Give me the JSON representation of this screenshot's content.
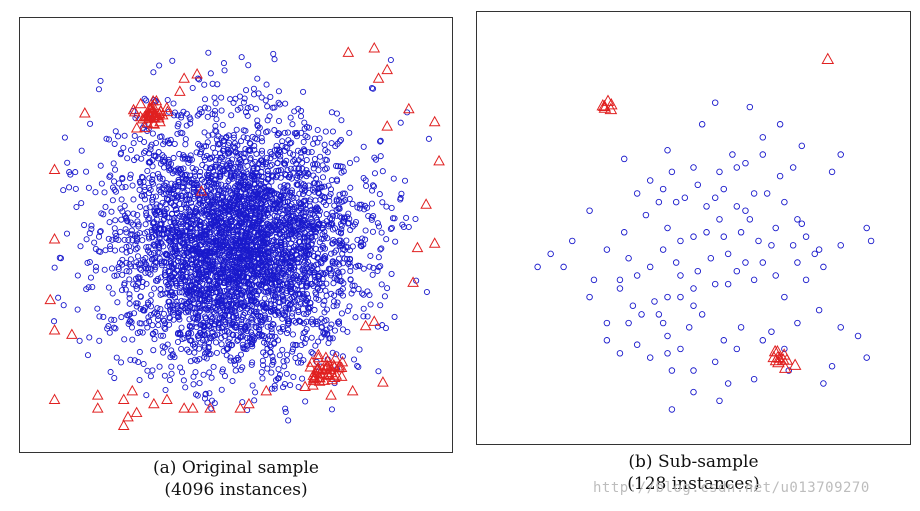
{
  "colors": {
    "inlier": "#1a1acc",
    "anomaly": "#e02020"
  },
  "watermark": "http://blog.csdn.net/u013709270",
  "chart_data": [
    {
      "type": "scatter",
      "caption_line1": "(a) Original sample",
      "caption_line2": "(4096 instances)",
      "xlim": [
        0,
        1
      ],
      "ylim": [
        0,
        1
      ],
      "series": [
        {
          "kind": "circle-dense",
          "count": 4096,
          "center": [
            0.5,
            0.52
          ],
          "spread": [
            0.14,
            0.14
          ]
        },
        {
          "kind": "triangle-cluster",
          "clusters": [
            {
              "center": [
                0.3,
                0.22
              ],
              "spread": [
                0.02,
                0.012
              ],
              "count": 45
            },
            {
              "center": [
                0.7,
                0.81
              ],
              "spread": [
                0.022,
                0.014
              ],
              "count": 45
            }
          ]
        },
        {
          "kind": "triangle-scatter",
          "points": [
            [
              0.76,
              0.08
            ],
            [
              0.82,
              0.07
            ],
            [
              0.85,
              0.12
            ],
            [
              0.83,
              0.14
            ],
            [
              0.38,
              0.14
            ],
            [
              0.41,
              0.13
            ],
            [
              0.37,
              0.17
            ],
            [
              0.9,
              0.21
            ],
            [
              0.96,
              0.24
            ],
            [
              0.85,
              0.25
            ],
            [
              0.15,
              0.22
            ],
            [
              0.42,
              0.4
            ],
            [
              0.97,
              0.33
            ],
            [
              0.08,
              0.35
            ],
            [
              0.94,
              0.43
            ],
            [
              0.08,
              0.51
            ],
            [
              0.92,
              0.53
            ],
            [
              0.96,
              0.52
            ],
            [
              0.91,
              0.61
            ],
            [
              0.07,
              0.65
            ],
            [
              0.08,
              0.72
            ],
            [
              0.12,
              0.73
            ],
            [
              0.82,
              0.7
            ],
            [
              0.8,
              0.71
            ],
            [
              0.08,
              0.88
            ],
            [
              0.18,
              0.87
            ],
            [
              0.18,
              0.9
            ],
            [
              0.24,
              0.88
            ],
            [
              0.26,
              0.86
            ],
            [
              0.31,
              0.89
            ],
            [
              0.34,
              0.88
            ],
            [
              0.38,
              0.9
            ],
            [
              0.4,
              0.9
            ],
            [
              0.25,
              0.92
            ],
            [
              0.27,
              0.91
            ],
            [
              0.44,
              0.9
            ],
            [
              0.51,
              0.9
            ],
            [
              0.53,
              0.89
            ],
            [
              0.57,
              0.86
            ],
            [
              0.66,
              0.85
            ],
            [
              0.68,
              0.83
            ],
            [
              0.72,
              0.87
            ],
            [
              0.84,
              0.84
            ],
            [
              0.77,
              0.86
            ],
            [
              0.24,
              0.94
            ]
          ]
        }
      ]
    },
    {
      "type": "scatter",
      "caption_line1": "(b) Sub-sample",
      "caption_line2": "(128 instances)",
      "xlim": [
        0,
        1
      ],
      "ylim": [
        0,
        1
      ],
      "series": [
        {
          "kind": "circle",
          "count": 128,
          "points": [
            [
              0.55,
              0.21
            ],
            [
              0.63,
              0.22
            ],
            [
              0.52,
              0.26
            ],
            [
              0.7,
              0.26
            ],
            [
              0.66,
              0.29
            ],
            [
              0.75,
              0.31
            ],
            [
              0.82,
              0.37
            ],
            [
              0.84,
              0.33
            ],
            [
              0.34,
              0.34
            ],
            [
              0.44,
              0.32
            ],
            [
              0.59,
              0.33
            ],
            [
              0.62,
              0.35
            ],
            [
              0.56,
              0.37
            ],
            [
              0.6,
              0.36
            ],
            [
              0.45,
              0.37
            ],
            [
              0.5,
              0.36
            ],
            [
              0.66,
              0.33
            ],
            [
              0.73,
              0.36
            ],
            [
              0.7,
              0.38
            ],
            [
              0.37,
              0.42
            ],
            [
              0.4,
              0.39
            ],
            [
              0.46,
              0.44
            ],
            [
              0.42,
              0.44
            ],
            [
              0.43,
              0.41
            ],
            [
              0.48,
              0.43
            ],
            [
              0.51,
              0.4
            ],
            [
              0.53,
              0.45
            ],
            [
              0.55,
              0.43
            ],
            [
              0.57,
              0.41
            ],
            [
              0.6,
              0.45
            ],
            [
              0.62,
              0.46
            ],
            [
              0.64,
              0.42
            ],
            [
              0.67,
              0.42
            ],
            [
              0.71,
              0.44
            ],
            [
              0.74,
              0.48
            ],
            [
              0.69,
              0.5
            ],
            [
              0.75,
              0.49
            ],
            [
              0.26,
              0.46
            ],
            [
              0.34,
              0.51
            ],
            [
              0.39,
              0.47
            ],
            [
              0.44,
              0.5
            ],
            [
              0.47,
              0.53
            ],
            [
              0.5,
              0.52
            ],
            [
              0.53,
              0.51
            ],
            [
              0.56,
              0.48
            ],
            [
              0.57,
              0.52
            ],
            [
              0.61,
              0.51
            ],
            [
              0.63,
              0.48
            ],
            [
              0.65,
              0.53
            ],
            [
              0.68,
              0.54
            ],
            [
              0.73,
              0.54
            ],
            [
              0.76,
              0.52
            ],
            [
              0.79,
              0.55
            ],
            [
              0.84,
              0.54
            ],
            [
              0.9,
              0.5
            ],
            [
              0.91,
              0.53
            ],
            [
              0.22,
              0.53
            ],
            [
              0.17,
              0.56
            ],
            [
              0.14,
              0.59
            ],
            [
              0.2,
              0.59
            ],
            [
              0.3,
              0.55
            ],
            [
              0.35,
              0.57
            ],
            [
              0.37,
              0.61
            ],
            [
              0.33,
              0.62
            ],
            [
              0.4,
              0.59
            ],
            [
              0.43,
              0.55
            ],
            [
              0.46,
              0.58
            ],
            [
              0.47,
              0.61
            ],
            [
              0.51,
              0.6
            ],
            [
              0.54,
              0.57
            ],
            [
              0.58,
              0.56
            ],
            [
              0.6,
              0.6
            ],
            [
              0.62,
              0.58
            ],
            [
              0.66,
              0.58
            ],
            [
              0.69,
              0.61
            ],
            [
              0.74,
              0.58
            ],
            [
              0.78,
              0.56
            ],
            [
              0.8,
              0.59
            ],
            [
              0.33,
              0.64
            ],
            [
              0.36,
              0.68
            ],
            [
              0.41,
              0.67
            ],
            [
              0.44,
              0.66
            ],
            [
              0.47,
              0.66
            ],
            [
              0.5,
              0.68
            ],
            [
              0.5,
              0.64
            ],
            [
              0.55,
              0.63
            ],
            [
              0.58,
              0.63
            ],
            [
              0.64,
              0.62
            ],
            [
              0.3,
              0.72
            ],
            [
              0.35,
              0.72
            ],
            [
              0.38,
              0.7
            ],
            [
              0.43,
              0.72
            ],
            [
              0.49,
              0.73
            ],
            [
              0.52,
              0.7
            ],
            [
              0.26,
              0.66
            ],
            [
              0.71,
              0.66
            ],
            [
              0.76,
              0.62
            ],
            [
              0.44,
              0.75
            ],
            [
              0.37,
              0.77
            ],
            [
              0.3,
              0.76
            ],
            [
              0.33,
              0.79
            ],
            [
              0.4,
              0.8
            ],
            [
              0.44,
              0.79
            ],
            [
              0.47,
              0.78
            ],
            [
              0.6,
              0.78
            ],
            [
              0.68,
              0.74
            ],
            [
              0.45,
              0.83
            ],
            [
              0.5,
              0.83
            ],
            [
              0.55,
              0.81
            ],
            [
              0.57,
              0.76
            ],
            [
              0.61,
              0.73
            ],
            [
              0.66,
              0.76
            ],
            [
              0.71,
              0.78
            ],
            [
              0.74,
              0.72
            ],
            [
              0.79,
              0.69
            ],
            [
              0.84,
              0.73
            ],
            [
              0.88,
              0.75
            ],
            [
              0.9,
              0.8
            ],
            [
              0.8,
              0.86
            ],
            [
              0.82,
              0.82
            ],
            [
              0.5,
              0.88
            ],
            [
              0.58,
              0.86
            ],
            [
              0.64,
              0.85
            ],
            [
              0.72,
              0.83
            ],
            [
              0.56,
              0.9
            ],
            [
              0.45,
              0.92
            ],
            [
              0.42,
              0.7
            ],
            [
              0.27,
              0.62
            ]
          ]
        },
        {
          "kind": "triangle-cluster",
          "clusters": [
            {
              "center": [
                0.29,
                0.22
              ],
              "spread": [
                0.012,
                0.005
              ],
              "count": 6
            },
            {
              "center": [
                0.71,
                0.8
              ],
              "spread": [
                0.018,
                0.012
              ],
              "count": 12
            }
          ]
        },
        {
          "kind": "triangle-scatter",
          "points": [
            [
              0.81,
              0.11
            ]
          ]
        }
      ]
    }
  ]
}
